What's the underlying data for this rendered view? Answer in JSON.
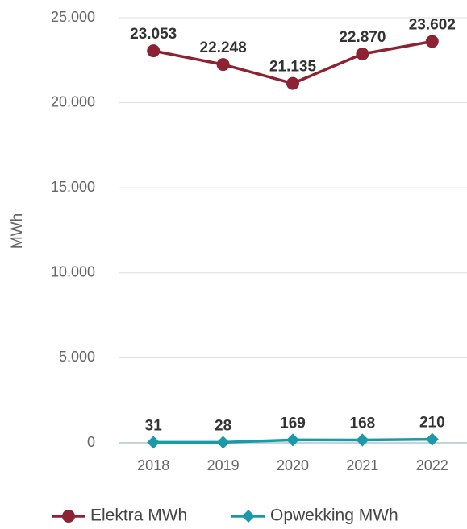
{
  "chart_data": {
    "type": "line",
    "y_label": "MWh",
    "categories": [
      "2018",
      "2019",
      "2020",
      "2021",
      "2022"
    ],
    "series": [
      {
        "name": "Elektra MWh",
        "color": "#8b2332",
        "marker": "circle",
        "values": [
          23053,
          22248,
          21135,
          22870,
          23602
        ],
        "value_labels": [
          "23.053",
          "22.248",
          "21.135",
          "22.870",
          "23.602"
        ]
      },
      {
        "name": "Opwekking MWh",
        "color": "#1a9aa8",
        "marker": "diamond",
        "values": [
          31,
          28,
          169,
          168,
          210
        ],
        "value_labels": [
          "31",
          "28",
          "169",
          "168",
          "210"
        ]
      }
    ],
    "ylim": [
      0,
      25000
    ],
    "yticks": [
      0,
      {
        "value": 5000,
        "label": "5.000"
      },
      {
        "value": 10000,
        "label": "10.000"
      },
      {
        "value": 15000,
        "label": "15.000"
      },
      {
        "value": 20000,
        "label": "20.000"
      },
      {
        "value": 25000,
        "label": "25.000"
      }
    ],
    "grid": true,
    "legend": "bottom"
  }
}
